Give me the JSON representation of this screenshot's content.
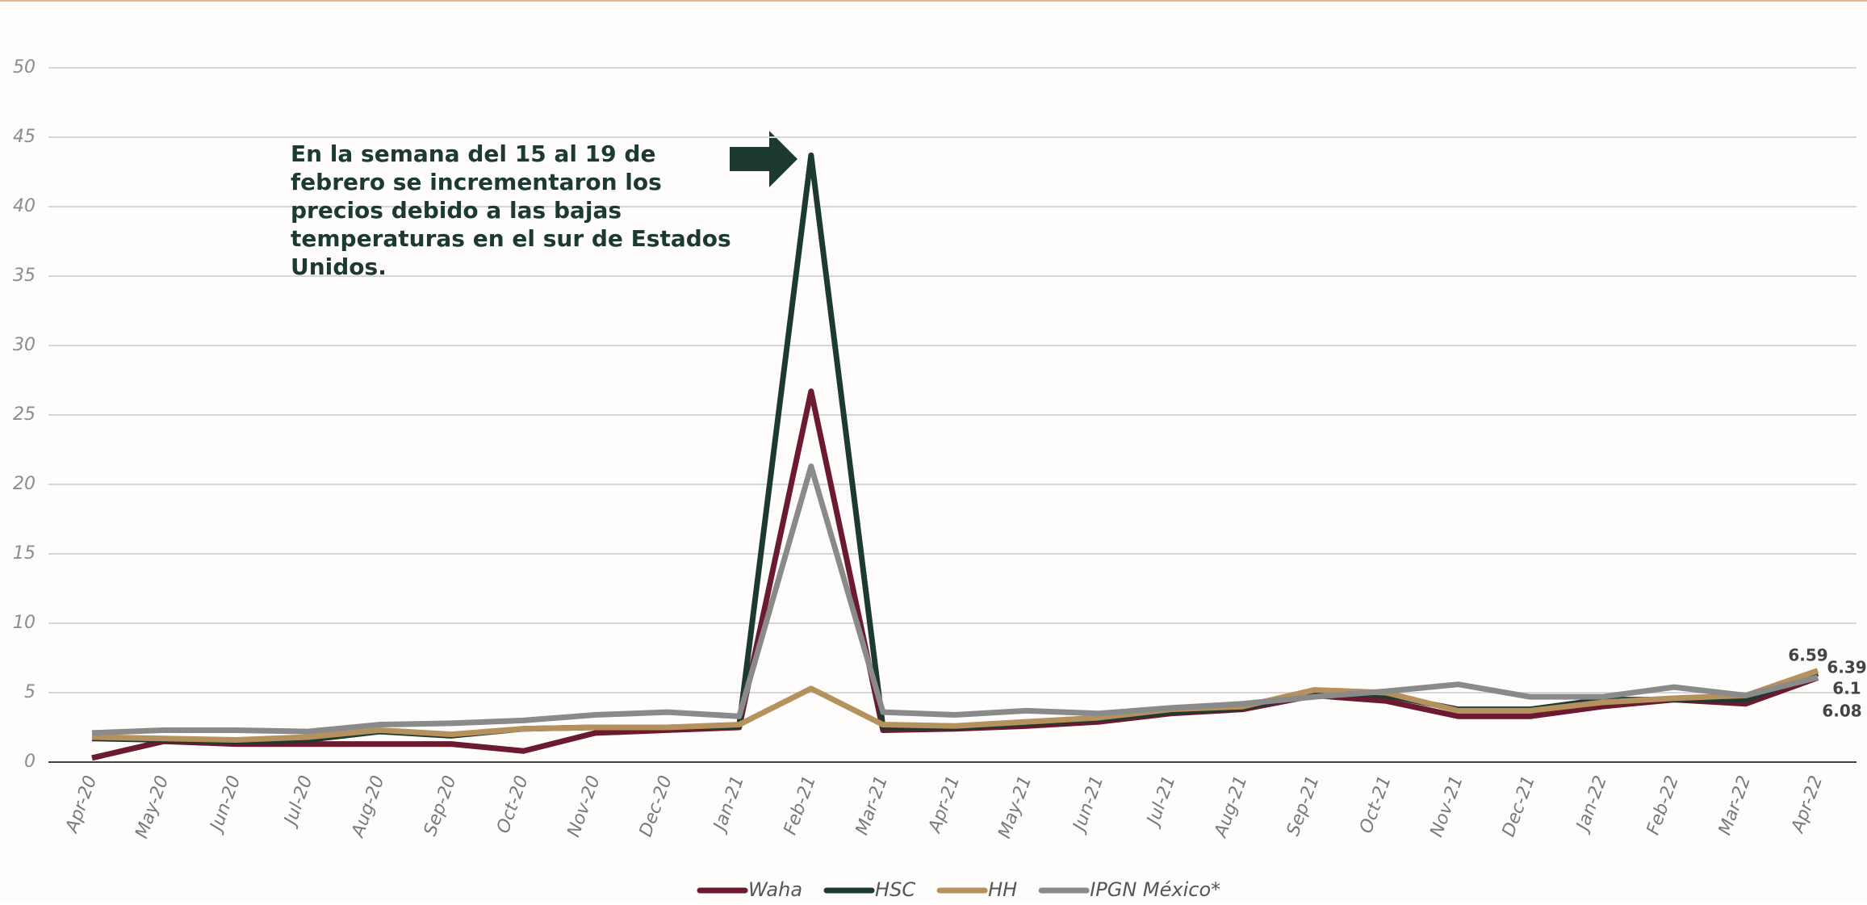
{
  "chart_data": {
    "type": "line",
    "annotation_lines": [
      "En la semana del 15 al 19 de",
      "febrero se incrementaron los",
      "precios debido a las bajas",
      "temperaturas en el sur de Estados",
      "Unidos."
    ],
    "categories": [
      "Apr-20",
      "May-20",
      "Jun-20",
      "Jul-20",
      "Aug-20",
      "Sep-20",
      "Oct-20",
      "Nov-20",
      "Dec-20",
      "Jan-21",
      "Feb-21",
      "Mar-21",
      "Apr-21",
      "May-21",
      "Jun-21",
      "Jul-21",
      "Aug-21",
      "Sep-21",
      "Oct-21",
      "Nov-21",
      "Dec-21",
      "Jan-22",
      "Feb-22",
      "Mar-22",
      "Apr-22"
    ],
    "series": [
      {
        "name": "Waha",
        "color": "#6b1a2f",
        "values": [
          0.3,
          1.5,
          1.3,
          1.3,
          1.3,
          1.3,
          0.8,
          2.1,
          2.3,
          2.5,
          26.7,
          2.3,
          2.4,
          2.6,
          2.9,
          3.5,
          3.8,
          4.8,
          4.4,
          3.3,
          3.3,
          4.0,
          4.5,
          4.2,
          6.08
        ]
      },
      {
        "name": "HSC",
        "color": "#1d3a31",
        "values": [
          1.7,
          1.6,
          1.5,
          1.6,
          2.2,
          1.9,
          2.4,
          2.5,
          2.5,
          2.6,
          43.7,
          2.5,
          2.5,
          2.8,
          3.1,
          3.6,
          3.9,
          5.0,
          4.8,
          3.8,
          3.8,
          4.5,
          4.5,
          4.5,
          6.39
        ]
      },
      {
        "name": "HH",
        "color": "#b5915e",
        "values": [
          1.8,
          1.7,
          1.6,
          1.8,
          2.3,
          2.0,
          2.4,
          2.5,
          2.5,
          2.7,
          5.3,
          2.7,
          2.6,
          2.9,
          3.2,
          3.8,
          4.0,
          5.2,
          5.0,
          3.7,
          3.7,
          4.3,
          4.6,
          4.8,
          6.59
        ]
      },
      {
        "name": "IPGN México*",
        "color": "#8a8a8a",
        "values": [
          2.1,
          2.3,
          2.3,
          2.2,
          2.7,
          2.8,
          3.0,
          3.4,
          3.6,
          3.3,
          21.3,
          3.6,
          3.4,
          3.7,
          3.5,
          3.9,
          4.2,
          4.7,
          5.1,
          5.6,
          4.7,
          4.7,
          5.4,
          4.8,
          6.1
        ]
      }
    ],
    "ylim": [
      0,
      50
    ],
    "yticks": [
      0,
      5,
      10,
      15,
      20,
      25,
      30,
      35,
      40,
      45,
      50
    ],
    "grid": true,
    "legend": "bottom"
  }
}
